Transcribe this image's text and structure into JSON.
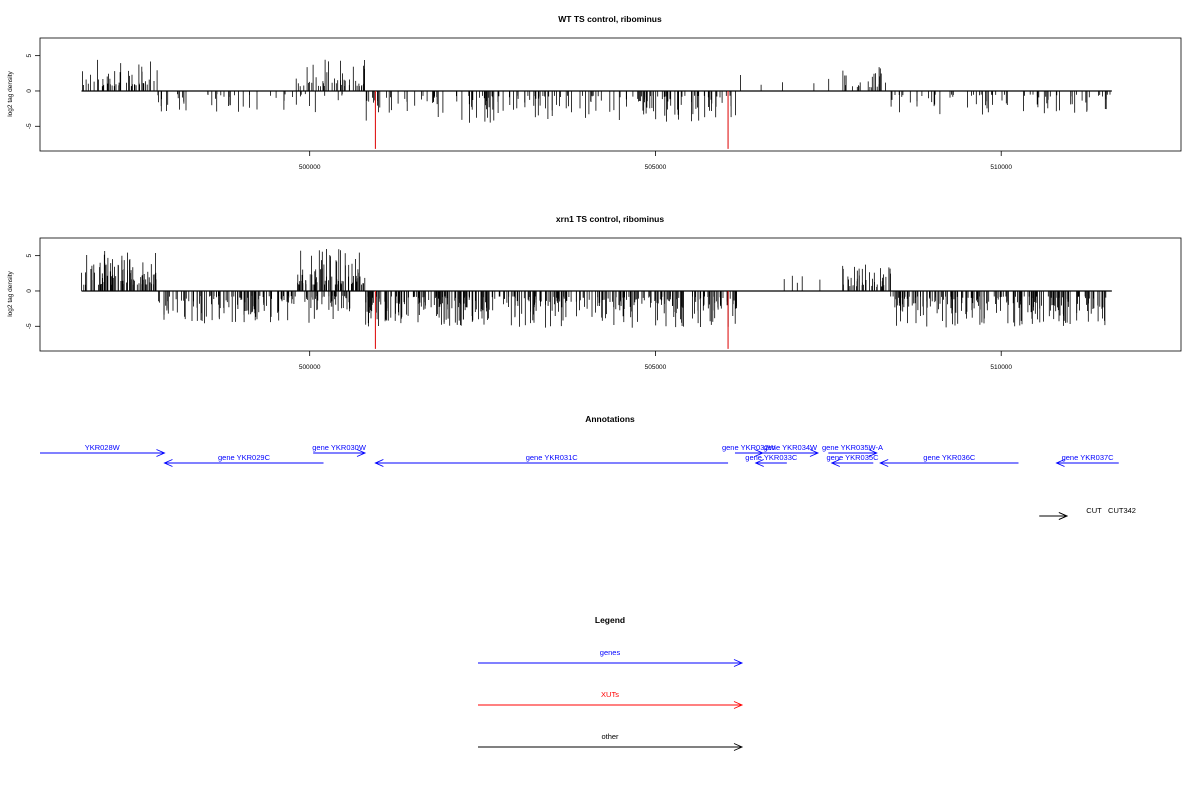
{
  "chart_data": [
    {
      "type": "bar",
      "title": "WT TS control, ribominus",
      "ylabel": "log2 tag density",
      "xticks": [
        500000,
        505000,
        510000
      ],
      "xtick_labels": [
        "500000",
        "505000",
        "510000"
      ],
      "yticks": [
        5,
        0,
        -5
      ],
      "ytick_labels": [
        "5",
        "0",
        "-5"
      ],
      "xlim": [
        496100,
        512600
      ],
      "ylim": [
        -8.5,
        7.5
      ],
      "red_spikes": [
        {
          "x": 500950,
          "y": -8.2
        },
        {
          "x": 506050,
          "y": -8.2
        }
      ],
      "segments": [
        {
          "from": 496700,
          "to": 497800,
          "sign": 1,
          "max": 4.5,
          "density": 2.2
        },
        {
          "from": 497800,
          "to": 500600,
          "sign": -1,
          "max": 3.0,
          "density": 0.9
        },
        {
          "from": 499800,
          "to": 500800,
          "sign": 1,
          "max": 4.5,
          "density": 2.2
        },
        {
          "from": 500800,
          "to": 506200,
          "sign": -1,
          "max": 4.6,
          "density": 1.7
        },
        {
          "from": 507700,
          "to": 508400,
          "sign": 1,
          "max": 3.5,
          "density": 1.6
        },
        {
          "from": 508400,
          "to": 511600,
          "sign": -1,
          "max": 3.4,
          "density": 1.2
        }
      ]
    },
    {
      "type": "bar",
      "title": "xrn1 TS control, ribominus",
      "ylabel": "log2 tag density",
      "xticks": [
        500000,
        505000,
        510000
      ],
      "xtick_labels": [
        "500000",
        "505000",
        "510000"
      ],
      "yticks": [
        5,
        0,
        -5
      ],
      "ytick_labels": [
        "5",
        "0",
        "-5"
      ],
      "xlim": [
        496100,
        512600
      ],
      "ylim": [
        -8.5,
        7.5
      ],
      "red_spikes": [
        {
          "x": 500950,
          "y": -8.2
        },
        {
          "x": 506050,
          "y": -8.2
        }
      ],
      "segments": [
        {
          "from": 496700,
          "to": 497800,
          "sign": 1,
          "max": 5.8,
          "density": 4.0
        },
        {
          "from": 497800,
          "to": 500600,
          "sign": -1,
          "max": 4.6,
          "density": 3.0
        },
        {
          "from": 499800,
          "to": 500800,
          "sign": 1,
          "max": 6.0,
          "density": 4.0
        },
        {
          "from": 500800,
          "to": 506200,
          "sign": -1,
          "max": 5.2,
          "density": 3.4
        },
        {
          "from": 507700,
          "to": 508400,
          "sign": 1,
          "max": 3.8,
          "density": 3.0
        },
        {
          "from": 508400,
          "to": 511600,
          "sign": -1,
          "max": 5.2,
          "density": 3.2
        }
      ]
    }
  ],
  "annotations": {
    "title": "Annotations",
    "genes": [
      {
        "label": "YKR028W",
        "start": 496100,
        "end": 497900,
        "strand": "+",
        "row": 0
      },
      {
        "label": "gene YKR029C",
        "start": 497900,
        "end": 500200,
        "strand": "-",
        "row": 1
      },
      {
        "label": "gene YKR030W",
        "start": 500050,
        "end": 500800,
        "strand": "+",
        "row": 0
      },
      {
        "label": "gene YKR031C",
        "start": 500950,
        "end": 506050,
        "strand": "-",
        "row": 1
      },
      {
        "label": "gene YKR032W",
        "start": 506150,
        "end": 506550,
        "strand": "+",
        "row": 0
      },
      {
        "label": "gene YKR033C",
        "start": 506450,
        "end": 506900,
        "strand": "-",
        "row": 1
      },
      {
        "label": "gene YKR034W",
        "start": 506550,
        "end": 507350,
        "strand": "+",
        "row": 0
      },
      {
        "label": "gene YKR035W-A",
        "start": 507500,
        "end": 508200,
        "strand": "+",
        "row": 0
      },
      {
        "label": "gene YKR035C",
        "start": 507550,
        "end": 508150,
        "strand": "-",
        "row": 1
      },
      {
        "label": "gene YKR036C",
        "start": 508250,
        "end": 510250,
        "strand": "-",
        "row": 1
      },
      {
        "label": "gene YKR037C",
        "start": 510800,
        "end": 511700,
        "strand": "-",
        "row": 1
      }
    ],
    "other": [
      {
        "label": "CUT",
        "start": 510550,
        "end": 510950,
        "strand": "+"
      },
      {
        "label": "CUT342",
        "start": 510800,
        "end": 510950,
        "strand": "+"
      }
    ]
  },
  "legend": {
    "title": "Legend",
    "items": [
      {
        "label": "genes",
        "color": "#0000ff"
      },
      {
        "label": "XUTs",
        "color": "#ff0000"
      },
      {
        "label": "other",
        "color": "#000000"
      }
    ]
  },
  "colors": {
    "gene": "#0000ff",
    "xut": "#ff0000",
    "other": "#000000",
    "axis": "#000000"
  }
}
